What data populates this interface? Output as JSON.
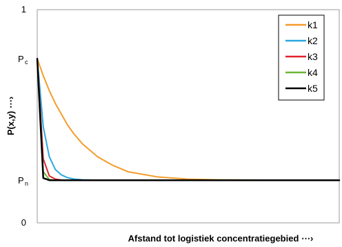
{
  "chart_data": {
    "type": "line",
    "title": "",
    "xlabel": "Afstand tot logistiek concentratiegebied ⋯›",
    "ylabel": "P(x,y) ⋯›",
    "ylim": [
      0,
      1
    ],
    "y_ticks": [
      "0",
      "1"
    ],
    "y_markers": [
      {
        "main": "P",
        "sub": "c",
        "value": 0.77
      },
      {
        "main": "P",
        "sub": "n",
        "value": 0.2
      }
    ],
    "grid": false,
    "legend_position": "top-right",
    "x": [
      0,
      0.02,
      0.04,
      0.06,
      0.08,
      0.1,
      0.12,
      0.15,
      0.2,
      0.25,
      0.3,
      0.4,
      0.5,
      0.6,
      0.7,
      0.8,
      0.9,
      1.0
    ],
    "series": [
      {
        "name": "k1",
        "color": "#f39c2b",
        "values": [
          0.77,
          0.69,
          0.62,
          0.56,
          0.51,
          0.46,
          0.42,
          0.37,
          0.31,
          0.27,
          0.24,
          0.215,
          0.205,
          0.202,
          0.201,
          0.2,
          0.2,
          0.2
        ]
      },
      {
        "name": "k2",
        "color": "#2aa7de",
        "values": [
          0.77,
          0.45,
          0.31,
          0.25,
          0.225,
          0.212,
          0.206,
          0.202,
          0.2,
          0.2,
          0.2,
          0.2,
          0.2,
          0.2,
          0.2,
          0.2,
          0.2,
          0.2
        ]
      },
      {
        "name": "k3",
        "color": "#e0232b",
        "values": [
          0.77,
          0.3,
          0.22,
          0.205,
          0.201,
          0.2,
          0.2,
          0.2,
          0.2,
          0.2,
          0.2,
          0.2,
          0.2,
          0.2,
          0.2,
          0.2,
          0.2,
          0.2
        ]
      },
      {
        "name": "k4",
        "color": "#6ab638",
        "values": [
          0.77,
          0.24,
          0.203,
          0.2,
          0.2,
          0.2,
          0.2,
          0.2,
          0.2,
          0.2,
          0.2,
          0.2,
          0.2,
          0.2,
          0.2,
          0.2,
          0.2,
          0.2
        ]
      },
      {
        "name": "k5",
        "color": "#000000",
        "values": [
          0.77,
          0.21,
          0.2,
          0.2,
          0.2,
          0.2,
          0.2,
          0.2,
          0.2,
          0.2,
          0.2,
          0.2,
          0.2,
          0.2,
          0.2,
          0.2,
          0.2,
          0.2
        ]
      }
    ]
  }
}
